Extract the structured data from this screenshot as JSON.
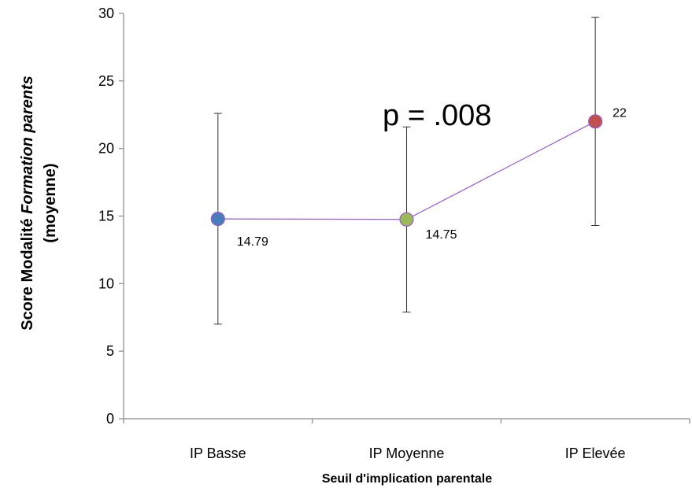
{
  "chart_data": {
    "type": "line",
    "categories": [
      "IP Basse",
      "IP Moyenne",
      "IP Elevée"
    ],
    "values": [
      14.79,
      14.75,
      22
    ],
    "value_labels": [
      "14.79",
      "14.75",
      "22"
    ],
    "error_bars": [
      {
        "low": 7.0,
        "high": 22.6
      },
      {
        "low": 7.9,
        "high": 21.6
      },
      {
        "low": 14.3,
        "high": 29.7
      }
    ],
    "point_colors": [
      "#4a7ebb",
      "#9bbb59",
      "#c0504d"
    ],
    "line_color": "#9b59d0",
    "annotation": "p = .008",
    "xlabel": "Seuil d'implication parentale",
    "ylabel_part1": "Score Modalité ",
    "ylabel_italic": "Formation parents",
    "ylabel_line2": "(moyenne)",
    "ylim": [
      0,
      30
    ],
    "yticks": [
      0,
      5,
      10,
      15,
      20,
      25,
      30
    ],
    "grid": false
  }
}
